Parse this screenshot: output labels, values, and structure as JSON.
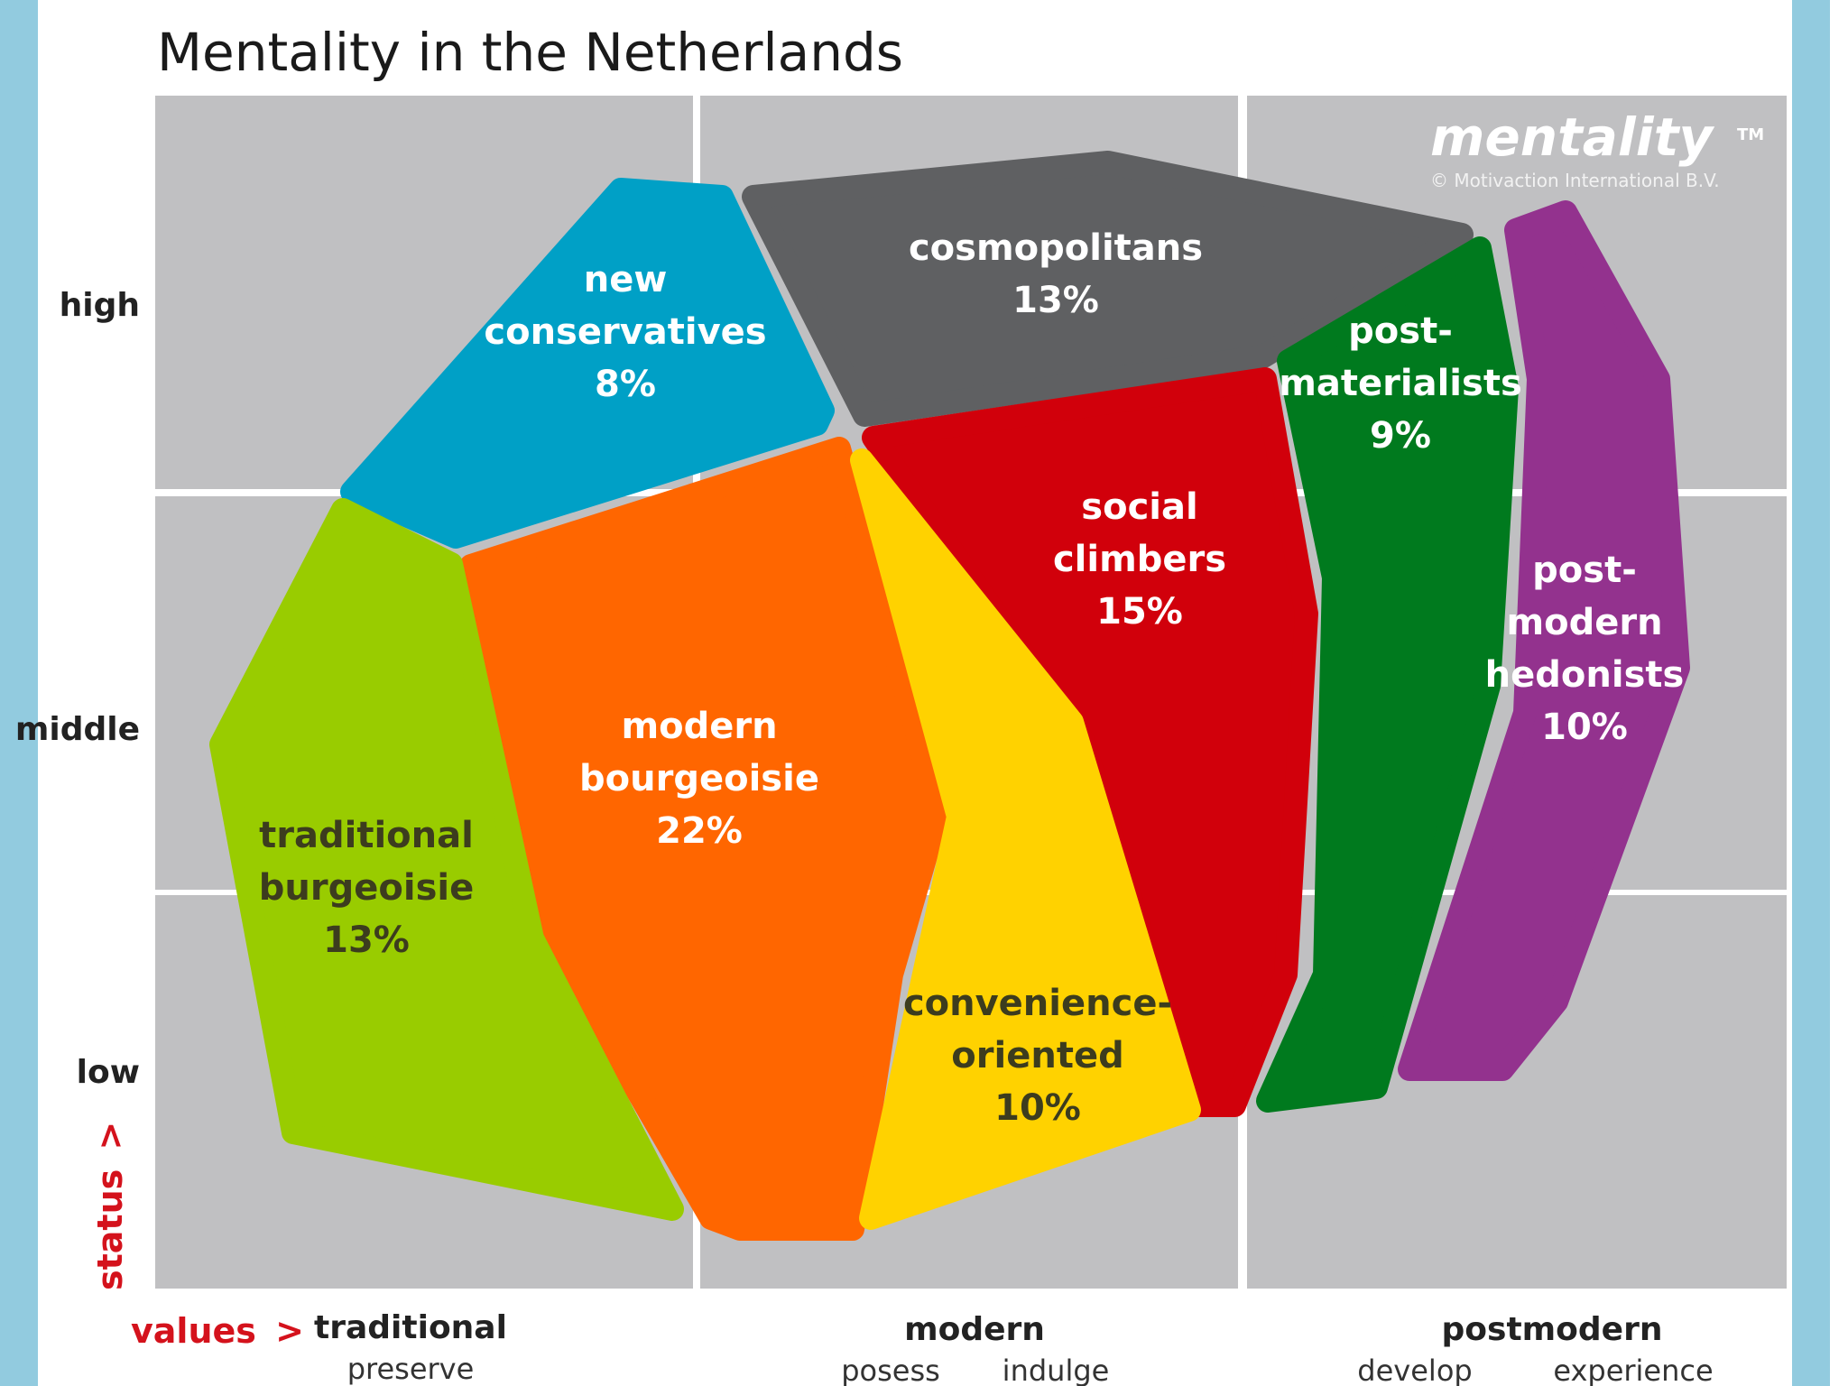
{
  "title": "Mentality in the Netherlands",
  "brand": {
    "name": "mentality",
    "trademark": "TM",
    "copyright": "© Motivaction International B.V."
  },
  "status_axis": {
    "label": "status",
    "arrow": ">",
    "levels": [
      "high",
      "middle",
      "low"
    ]
  },
  "values_axis": {
    "label": "values",
    "arrow": ">",
    "groups": [
      {
        "name": "traditional",
        "subs": [
          "preserve"
        ]
      },
      {
        "name": "modern",
        "subs": [
          "posess",
          "indulge"
        ]
      },
      {
        "name": "postmodern",
        "subs": [
          "develop",
          "experience"
        ]
      }
    ]
  },
  "segments": [
    {
      "name": "new conservatives",
      "lines": [
        "new",
        "conservatives"
      ],
      "pct": "8%",
      "color": "#00a0c6",
      "text_color": "#ffffff"
    },
    {
      "name": "cosmopolitans",
      "lines": [
        "cosmopolitans"
      ],
      "pct": "13%",
      "color": "#5f6062",
      "text_color": "#ffffff"
    },
    {
      "name": "post-materialists",
      "lines": [
        "post-",
        "materialists"
      ],
      "pct": "9%",
      "color": "#007a1e",
      "text_color": "#ffffff"
    },
    {
      "name": "post-modern hedonists",
      "lines": [
        "post-",
        "modern",
        "hedonists"
      ],
      "pct": "10%",
      "color": "#93328e",
      "text_color": "#ffffff"
    },
    {
      "name": "social climbers",
      "lines": [
        "social",
        "climbers"
      ],
      "pct": "15%",
      "color": "#d1000b",
      "text_color": "#ffffff"
    },
    {
      "name": "modern bourgeoisie",
      "lines": [
        "modern",
        "bourgeoisie"
      ],
      "pct": "22%",
      "color": "#ff6600",
      "text_color": "#ffffff"
    },
    {
      "name": "traditional burgeoisie",
      "lines": [
        "traditional",
        "burgeoisie"
      ],
      "pct": "13%",
      "color": "#99cc00",
      "text_color": "#3c3c1e"
    },
    {
      "name": "convenience-oriented",
      "lines": [
        "convenience-",
        "oriented"
      ],
      "pct": "10%",
      "color": "#ffd200",
      "text_color": "#3c3c1e"
    }
  ],
  "colors": {
    "grid_background": "#c0c0c2",
    "grid_lines": "#ffffff",
    "side_bars": "#92cbdf",
    "axis_accent": "#d4121c"
  }
}
